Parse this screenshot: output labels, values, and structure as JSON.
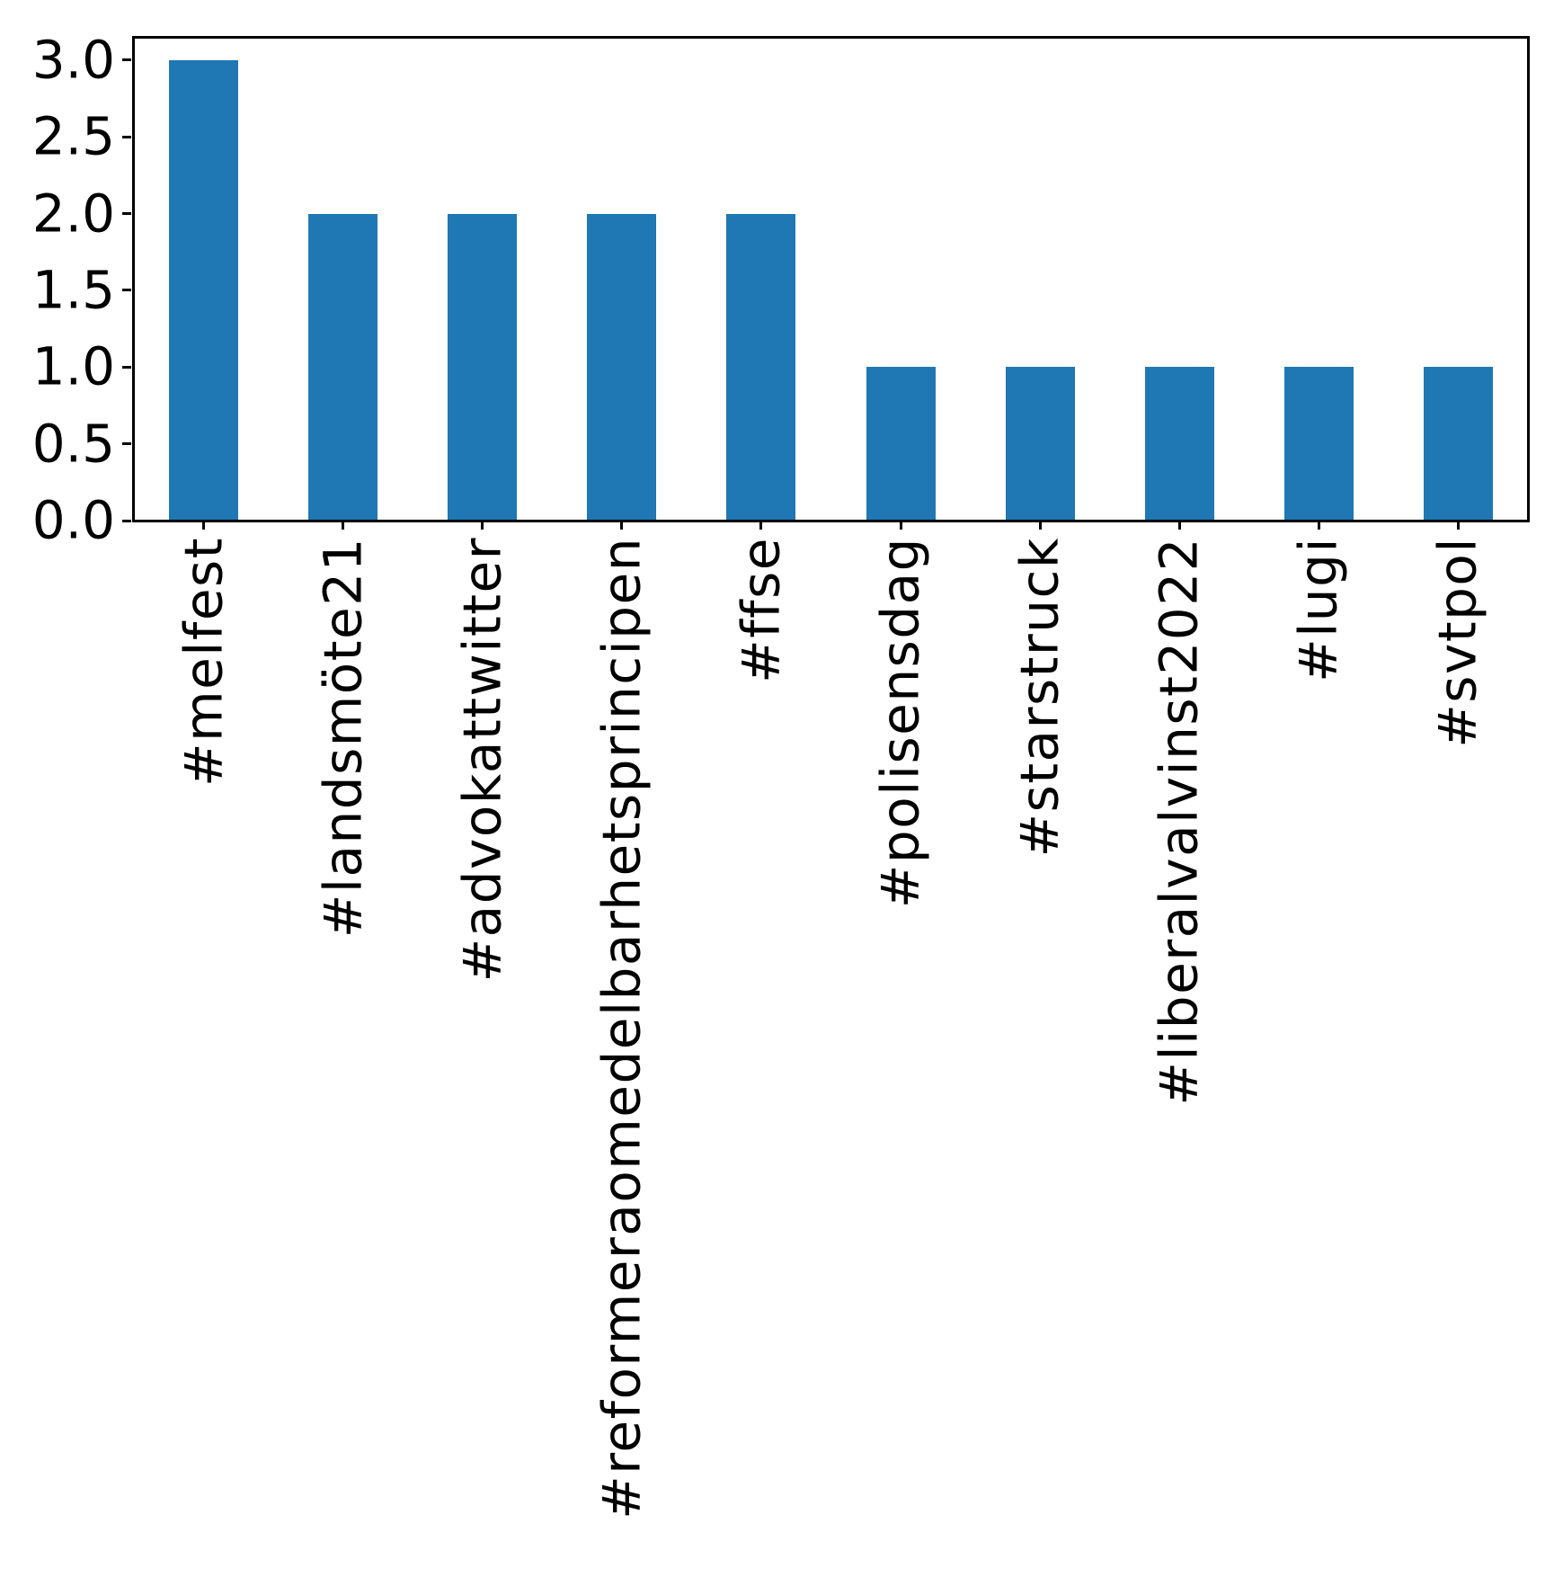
{
  "figure": {
    "background_color": "#ffffff",
    "frame_color": "#000000",
    "text_color": "#000000"
  },
  "chart_data": {
    "type": "bar",
    "title": "",
    "xlabel": "",
    "ylabel": "",
    "categories": [
      "#melfest",
      "#landsmöte21",
      "#advokattwitter",
      "#reformeraomedelbarhetsprincipen",
      "#ffse",
      "#polisensdag",
      "#starstruck",
      "#liberalvalvinst2022",
      "#lugi",
      "#svtpol"
    ],
    "values": [
      3,
      2,
      2,
      2,
      2,
      1,
      1,
      1,
      1,
      1
    ],
    "bar_color": "#1f77b4",
    "ytick_labels": [
      "0.0",
      "0.5",
      "1.0",
      "1.5",
      "2.0",
      "2.5",
      "3.0"
    ],
    "yticks": [
      0.0,
      0.5,
      1.0,
      1.5,
      2.0,
      2.5,
      3.0
    ],
    "ylim": [
      0,
      3.146
    ],
    "xtick_rotation": 90,
    "grid": false,
    "legend": null
  }
}
